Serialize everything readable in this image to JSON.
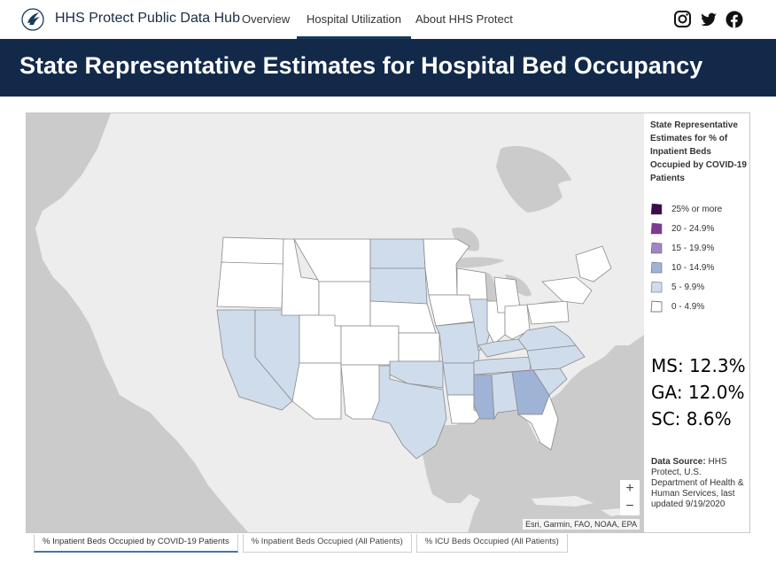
{
  "header": {
    "brand": "HHS Protect Public Data Hub",
    "nav": [
      {
        "label": "Overview",
        "active": false
      },
      {
        "label": "Hospital Utilization",
        "active": true
      },
      {
        "label": "About HHS Protect",
        "active": false
      }
    ],
    "social_icons": [
      "instagram-icon",
      "twitter-icon",
      "facebook-icon"
    ]
  },
  "banner": {
    "title": "State Representative Estimates for Hospital Bed Occupancy"
  },
  "legend": {
    "title": "State Representative Estimates for % of Inpatient Beds Occupied by COVID-19 Patients",
    "items": [
      {
        "label": "25% or more",
        "color": "#3d0a4f"
      },
      {
        "label": "20 - 24.9%",
        "color": "#7e3b93"
      },
      {
        "label": "15 - 19.9%",
        "color": "#9f86c4"
      },
      {
        "label": "10 - 14.9%",
        "color": "#9fb3d6"
      },
      {
        "label": "5 - 9.9%",
        "color": "#cfdcec"
      },
      {
        "label": "0 - 4.9%",
        "color": "#ffffff"
      }
    ]
  },
  "stats": {
    "ms": "MS: 12.3%",
    "ga": "GA: 12.0%",
    "sc": "SC: 8.6%"
  },
  "source": {
    "label": "Data Source:",
    "text": "HHS Protect, U.S. Department of Health & Human Services, last updated 9/19/2020"
  },
  "map": {
    "attribution": "Esri, Garmin, FAO, NOAA, EPA",
    "zoom_in": "+",
    "zoom_out": "−",
    "colors": {
      "land": "#ededed",
      "water": "#cbcbcb",
      "border": "#8a8a8a"
    }
  },
  "tabs": [
    {
      "label": "% Inpatient Beds Occupied by COVID-19 Patients",
      "active": true
    },
    {
      "label": "% Inpatient Beds Occupied (All Patients)",
      "active": false
    },
    {
      "label": "% ICU Beds Occupied (All Patients)",
      "active": false
    }
  ]
}
